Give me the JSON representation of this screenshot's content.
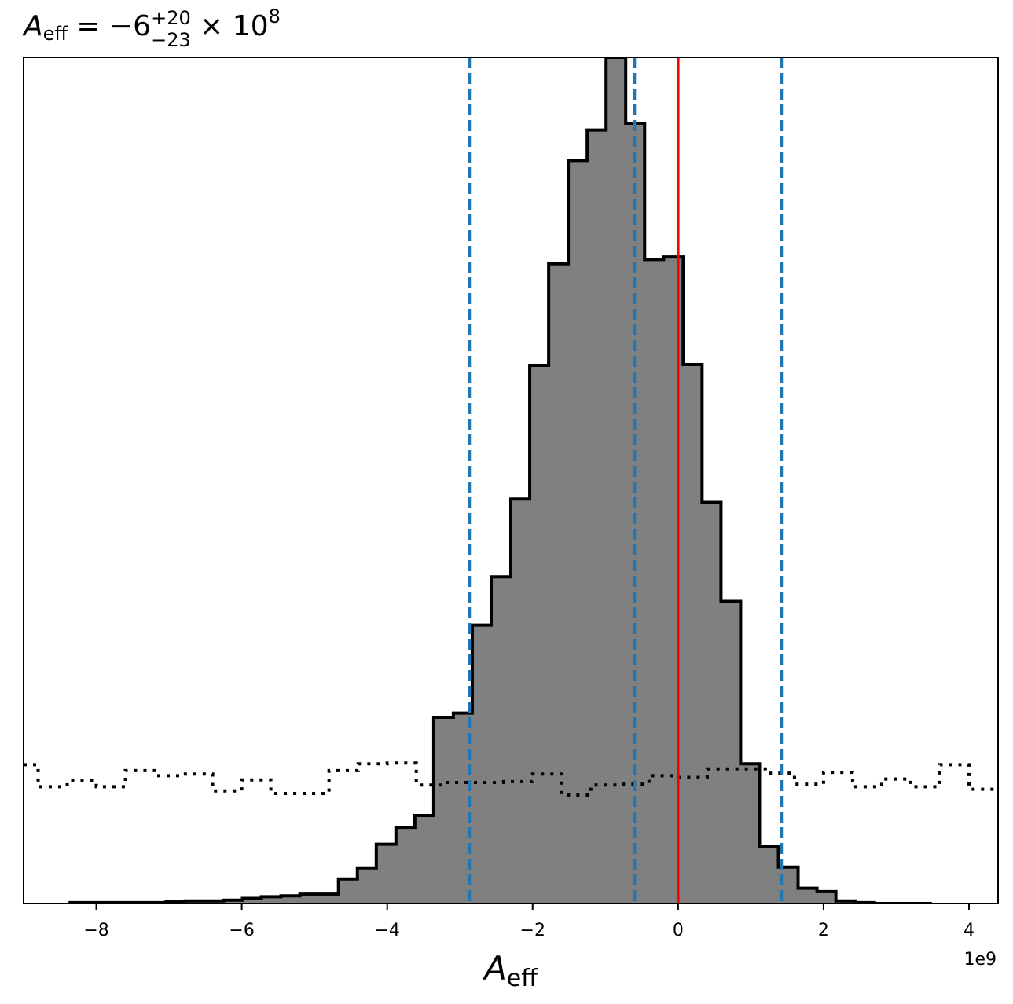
{
  "chart_data": {
    "type": "histogram",
    "title": {
      "base": "A",
      "sub": "eff",
      "rest": " = −6",
      "sup_unc": "+20",
      "sub_unc": "−23",
      "times": " × 10",
      "exp": "8"
    },
    "xlabel": {
      "base": "A",
      "sub": "eff"
    },
    "x_offset_label": "1e9",
    "x_scale": 1000000000,
    "xlim": [
      -9.0,
      4.4
    ],
    "ylim": [
      0,
      1.0
    ],
    "xticks": [
      -8,
      -6,
      -4,
      -2,
      0,
      2,
      4
    ],
    "xtick_labels": [
      "−8",
      "−6",
      "−4",
      "−2",
      "0",
      "2",
      "4"
    ],
    "yticks_visible": false,
    "posterior": {
      "fill_color": "#808080",
      "edge_color": "#000000",
      "edges": [
        -8.36,
        -8.1,
        -7.83,
        -7.57,
        -7.31,
        -7.04,
        -6.78,
        -6.52,
        -6.25,
        -5.99,
        -5.73,
        -5.46,
        -5.2,
        -4.94,
        -4.67,
        -4.41,
        -4.15,
        -3.88,
        -3.62,
        -3.36,
        -3.09,
        -2.83,
        -2.57,
        -2.3,
        -2.04,
        -1.78,
        -1.51,
        -1.25,
        -0.99,
        -0.72,
        -0.46,
        -0.2,
        0.07,
        0.33,
        0.59,
        0.86,
        1.12,
        1.38,
        1.65,
        1.91,
        2.17,
        2.44,
        2.7,
        2.96,
        3.23,
        3.49
      ],
      "heights": [
        0.001,
        0.001,
        0.001,
        0.001,
        0.001,
        0.002,
        0.003,
        0.003,
        0.004,
        0.006,
        0.008,
        0.009,
        0.011,
        0.011,
        0.029,
        0.042,
        0.07,
        0.09,
        0.104,
        0.22,
        0.225,
        0.329,
        0.386,
        0.478,
        0.636,
        0.756,
        0.878,
        0.914,
        1.0,
        0.922,
        0.761,
        0.764,
        0.637,
        0.474,
        0.357,
        0.165,
        0.067,
        0.043,
        0.018,
        0.014,
        0.003,
        0.001,
        0.0,
        0.0,
        0.0
      ]
    },
    "prior": {
      "line_style": "dotted",
      "color": "#000000",
      "edges": [
        -9.0,
        -8.8,
        -8.4,
        -8.0,
        -7.6,
        -7.2,
        -6.8,
        -6.4,
        -6.0,
        -5.6,
        -5.2,
        -4.8,
        -4.4,
        -4.0,
        -3.6,
        -3.2,
        -2.8,
        -2.4,
        -2.0,
        -1.6,
        -1.2,
        -0.8,
        -0.4,
        0.0,
        0.4,
        0.8,
        1.2,
        1.6,
        2.0,
        2.4,
        2.8,
        3.2,
        3.6,
        4.0,
        4.4
      ],
      "heights": [
        0.164,
        0.138,
        0.145,
        0.138,
        0.157,
        0.151,
        0.153,
        0.133,
        0.146,
        0.13,
        0.13,
        0.157,
        0.165,
        0.166,
        0.14,
        0.143,
        0.143,
        0.144,
        0.153,
        0.128,
        0.14,
        0.141,
        0.151,
        0.149,
        0.159,
        0.159,
        0.154,
        0.141,
        0.155,
        0.138,
        0.147,
        0.138,
        0.164,
        0.135
      ]
    },
    "quantile_lines": {
      "color": "#1f77b4",
      "style": "dashed",
      "values": [
        -2.87,
        -0.6,
        1.42
      ]
    },
    "truth_line": {
      "color": "#ff0000",
      "value": 0.0
    }
  }
}
